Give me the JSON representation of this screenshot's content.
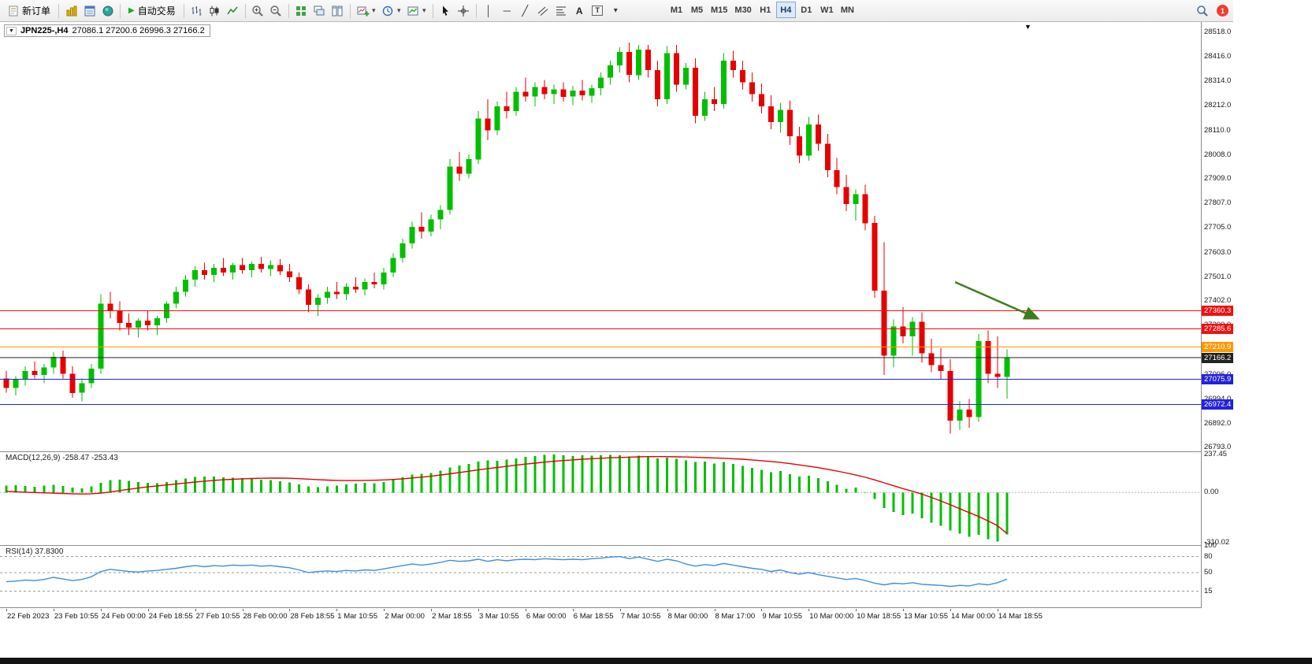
{
  "toolbar": {
    "new_order_label": "新订单",
    "auto_trading_label": "自动交易",
    "timeframes": [
      "M1",
      "M5",
      "M15",
      "M30",
      "H1",
      "H4",
      "D1",
      "W1",
      "MN"
    ],
    "active_timeframe": "H4",
    "notification_count": "1"
  },
  "icons": {
    "play": "▶",
    "caret": "▾",
    "vertical_line": "│",
    "horizontal_line": "─",
    "trendline": "╱",
    "text": "A",
    "label_text": "T",
    "collapse": "▼",
    "shift_marker": "▼"
  },
  "chart": {
    "symbol_label": "JPN225-,H4",
    "ohlc_label": "27086.1 27200.6 26996.3 27166.2"
  },
  "chart_data": [
    {
      "type": "candlestick",
      "symbol": "JPN225-",
      "timeframe": "H4",
      "current_bar": {
        "open": 27086.1,
        "high": 27200.6,
        "low": 26996.3,
        "close": 27166.2
      },
      "colors": {
        "up": "#00bf00",
        "down": "#e60000"
      },
      "y_range": [
        26777,
        28560
      ],
      "y_axis_labels": [
        28518,
        28416,
        28314,
        28212,
        28110,
        28008,
        27909,
        27807,
        27705,
        27603,
        27501,
        27402,
        27300,
        27198,
        27096,
        26994,
        26892,
        26793
      ],
      "x_label_step": 5,
      "x_labels": [
        "22 Feb 2023",
        "23 Feb 10:55",
        "24 Feb 00:00",
        "24 Feb 18:55",
        "27 Feb 10:55",
        "28 Feb 00:00",
        "28 Feb 18:55",
        "1 Mar 10:55",
        "2 Mar 00:00",
        "2 Mar 18:55",
        "3 Mar 10:55",
        "6 Mar 00:00",
        "6 Mar 18:55",
        "7 Mar 10:55",
        "8 Mar 00:00",
        "8 Mar 17:00",
        "9 Mar 10:55",
        "10 Mar 00:00",
        "10 Mar 18:55",
        "13 Mar 10:55",
        "14 Mar 00:00",
        "14 Mar 18:55"
      ],
      "levels": [
        {
          "price": 27360.3,
          "color": "#ee1111",
          "style": "solid"
        },
        {
          "price": 27285.6,
          "color": "#ee1111",
          "style": "solid"
        },
        {
          "price": 27210.9,
          "color": "#ff9800",
          "style": "solid"
        },
        {
          "price": 27166.2,
          "color": "#222222",
          "style": "solid",
          "kind": "bid"
        },
        {
          "price": 27075.9,
          "color": "#2222dd",
          "style": "solid"
        },
        {
          "price": 26972.4,
          "color": "#2222dd",
          "style": "solid"
        }
      ],
      "arrow": {
        "i1": 100.5,
        "p1": 27480,
        "i2": 109.2,
        "p2": 27330,
        "color": "#3f7d1c"
      },
      "candles": [
        [
          27080,
          27110,
          27020,
          27040
        ],
        [
          27040,
          27090,
          27010,
          27075
        ],
        [
          27075,
          27130,
          27050,
          27110
        ],
        [
          27110,
          27150,
          27080,
          27095
        ],
        [
          27095,
          27140,
          27060,
          27125
        ],
        [
          27125,
          27190,
          27100,
          27170
        ],
        [
          27170,
          27195,
          27080,
          27100
        ],
        [
          27100,
          27130,
          27000,
          27020
        ],
        [
          27020,
          27080,
          26985,
          27060
        ],
        [
          27060,
          27140,
          27040,
          27120
        ],
        [
          27120,
          27430,
          27100,
          27390
        ],
        [
          27390,
          27440,
          27330,
          27360
        ],
        [
          27360,
          27400,
          27280,
          27310
        ],
        [
          27310,
          27350,
          27260,
          27290
        ],
        [
          27290,
          27330,
          27250,
          27320
        ],
        [
          27320,
          27360,
          27280,
          27300
        ],
        [
          27300,
          27340,
          27260,
          27330
        ],
        [
          27330,
          27400,
          27310,
          27390
        ],
        [
          27390,
          27460,
          27370,
          27440
        ],
        [
          27440,
          27510,
          27420,
          27490
        ],
        [
          27490,
          27545,
          27460,
          27530
        ],
        [
          27530,
          27560,
          27490,
          27510
        ],
        [
          27510,
          27555,
          27480,
          27540
        ],
        [
          27540,
          27580,
          27505,
          27520
        ],
        [
          27520,
          27560,
          27490,
          27550
        ],
        [
          27550,
          27580,
          27515,
          27530
        ],
        [
          27530,
          27565,
          27500,
          27555
        ],
        [
          27555,
          27585,
          27520,
          27535
        ],
        [
          27535,
          27570,
          27505,
          27550
        ],
        [
          27550,
          27575,
          27510,
          27525
        ],
        [
          27525,
          27555,
          27480,
          27500
        ],
        [
          27500,
          27520,
          27430,
          27450
        ],
        [
          27450,
          27470,
          27355,
          27385
        ],
        [
          27385,
          27430,
          27340,
          27415
        ],
        [
          27415,
          27460,
          27390,
          27440
        ],
        [
          27440,
          27480,
          27410,
          27430
        ],
        [
          27430,
          27475,
          27405,
          27460
        ],
        [
          27460,
          27500,
          27435,
          27450
        ],
        [
          27450,
          27495,
          27425,
          27480
        ],
        [
          27480,
          27520,
          27455,
          27470
        ],
        [
          27470,
          27540,
          27450,
          27520
        ],
        [
          27520,
          27600,
          27500,
          27580
        ],
        [
          27580,
          27660,
          27560,
          27640
        ],
        [
          27640,
          27730,
          27620,
          27710
        ],
        [
          27710,
          27770,
          27660,
          27690
        ],
        [
          27690,
          27760,
          27670,
          27740
        ],
        [
          27740,
          27800,
          27700,
          27780
        ],
        [
          27780,
          27990,
          27760,
          27960
        ],
        [
          27960,
          28020,
          27900,
          27930
        ],
        [
          27930,
          28010,
          27910,
          27990
        ],
        [
          27990,
          28190,
          27970,
          28160
        ],
        [
          28160,
          28240,
          28070,
          28110
        ],
        [
          28110,
          28230,
          28090,
          28210
        ],
        [
          28210,
          28270,
          28160,
          28190
        ],
        [
          28190,
          28290,
          28170,
          28270
        ],
        [
          28270,
          28330,
          28230,
          28250
        ],
        [
          28250,
          28310,
          28210,
          28290
        ],
        [
          28290,
          28320,
          28240,
          28260
        ],
        [
          28260,
          28300,
          28220,
          28280
        ],
        [
          28280,
          28310,
          28230,
          28250
        ],
        [
          28250,
          28295,
          28215,
          28275
        ],
        [
          28275,
          28320,
          28235,
          28255
        ],
        [
          28255,
          28300,
          28225,
          28285
        ],
        [
          28285,
          28350,
          28255,
          28330
        ],
        [
          28330,
          28400,
          28300,
          28380
        ],
        [
          28380,
          28455,
          28350,
          28435
        ],
        [
          28435,
          28475,
          28310,
          28340
        ],
        [
          28340,
          28465,
          28320,
          28445
        ],
        [
          28445,
          28465,
          28330,
          28360
        ],
        [
          28360,
          28400,
          28210,
          28240
        ],
        [
          28240,
          28460,
          28220,
          28430
        ],
        [
          28430,
          28465,
          28270,
          28300
        ],
        [
          28300,
          28390,
          28280,
          28370
        ],
        [
          28370,
          28410,
          28140,
          28170
        ],
        [
          28170,
          28270,
          28150,
          28240
        ],
        [
          28240,
          28290,
          28190,
          28220
        ],
        [
          28220,
          28430,
          28200,
          28400
        ],
        [
          28400,
          28440,
          28330,
          28360
        ],
        [
          28360,
          28400,
          28280,
          28310
        ],
        [
          28310,
          28350,
          28230,
          28260
        ],
        [
          28260,
          28305,
          28180,
          28210
        ],
        [
          28210,
          28255,
          28115,
          28145
        ],
        [
          28145,
          28225,
          28100,
          28195
        ],
        [
          28195,
          28235,
          28050,
          28085
        ],
        [
          28085,
          28125,
          27975,
          28005
        ],
        [
          28005,
          28165,
          27985,
          28135
        ],
        [
          28135,
          28175,
          28025,
          28055
        ],
        [
          28055,
          28095,
          27915,
          27945
        ],
        [
          27945,
          27995,
          27845,
          27875
        ],
        [
          27875,
          27925,
          27775,
          27805
        ],
        [
          27805,
          27865,
          27735,
          27845
        ],
        [
          27845,
          27885,
          27695,
          27725
        ],
        [
          27725,
          27755,
          27415,
          27445
        ],
        [
          27445,
          27645,
          27095,
          27175
        ],
        [
          27175,
          27325,
          27125,
          27295
        ],
        [
          27295,
          27375,
          27225,
          27255
        ],
        [
          27255,
          27335,
          27175,
          27315
        ],
        [
          27315,
          27355,
          27145,
          27185
        ],
        [
          27185,
          27245,
          27105,
          27135
        ],
        [
          27135,
          27205,
          27075,
          27110
        ],
        [
          27110,
          27160,
          26850,
          26905
        ],
        [
          26905,
          26985,
          26865,
          26950
        ],
        [
          26950,
          26995,
          26875,
          26920
        ],
        [
          26920,
          27265,
          26900,
          27235
        ],
        [
          27235,
          27280,
          27060,
          27100
        ],
        [
          27100,
          27255,
          27040,
          27086
        ],
        [
          27086,
          27200.6,
          26996.3,
          27166.2
        ]
      ]
    },
    {
      "type": "macd",
      "label": "MACD(12,26,9) -258.47 -253.43",
      "main_value": -258.47,
      "signal_value": -253.43,
      "colors": {
        "histogram": "#00c000",
        "signal": "#e60000"
      },
      "y_range": [
        -325,
        250
      ],
      "y_axis_labels": [
        237.45,
        0,
        -310.02
      ],
      "histogram": [
        42,
        45,
        40,
        36,
        42,
        48,
        40,
        30,
        26,
        38,
        60,
        78,
        80,
        72,
        66,
        60,
        58,
        66,
        76,
        86,
        96,
        100,
        98,
        95,
        92,
        88,
        84,
        80,
        76,
        70,
        62,
        50,
        38,
        34,
        38,
        44,
        50,
        55,
        60,
        58,
        66,
        80,
        95,
        110,
        115,
        122,
        135,
        155,
        168,
        178,
        192,
        200,
        196,
        204,
        212,
        220,
        226,
        232,
        235,
        230,
        226,
        230,
        227,
        230,
        233,
        230,
        224,
        228,
        220,
        210,
        216,
        208,
        200,
        188,
        192,
        180,
        188,
        176,
        164,
        152,
        140,
        126,
        132,
        114,
        98,
        104,
        88,
        70,
        48,
        24,
        30,
        2,
        -40,
        -95,
        -120,
        -140,
        -130,
        -160,
        -185,
        -205,
        -235,
        -255,
        -275,
        -262,
        -288,
        -302,
        -258.5
      ],
      "signal": [
        8,
        5,
        2,
        0,
        -2,
        -4,
        -6,
        -8,
        -9,
        -8,
        -4,
        3,
        12,
        20,
        28,
        35,
        41,
        47,
        53,
        59,
        65,
        70,
        75,
        79,
        82,
        85,
        87,
        88,
        89,
        89,
        88,
        86,
        83,
        80,
        77,
        75,
        74,
        74,
        75,
        76,
        78,
        81,
        85,
        90,
        95,
        101,
        108,
        116,
        124,
        132,
        140,
        148,
        155,
        162,
        169,
        176,
        182,
        188,
        193,
        198,
        202,
        206,
        209,
        212,
        215,
        217,
        219,
        221,
        222,
        222,
        222,
        221,
        220,
        218,
        216,
        214,
        212,
        209,
        206,
        202,
        197,
        192,
        186,
        179,
        171,
        163,
        154,
        144,
        133,
        121,
        108,
        94,
        78,
        60,
        42,
        24,
        8,
        -10,
        -30,
        -52,
        -76,
        -100,
        -124,
        -148,
        -176,
        -205,
        -253.4
      ]
    },
    {
      "type": "rsi",
      "label": "RSI(14) 37.8300",
      "value": 37.83,
      "color": "#3e8ede",
      "levels": [
        80,
        50,
        15
      ],
      "y_range": [
        -15,
        100
      ],
      "y_axis_labels": [
        100,
        80,
        50,
        15
      ],
      "values": [
        33,
        34,
        36,
        35,
        37,
        41,
        38,
        35,
        37,
        42,
        52,
        56,
        54,
        52,
        51,
        53,
        54,
        56,
        58,
        61,
        63,
        61,
        63,
        62,
        64,
        63,
        64,
        62,
        63,
        61,
        59,
        55,
        50,
        52,
        53,
        52,
        54,
        53,
        55,
        54,
        57,
        60,
        63,
        66,
        64,
        66,
        69,
        73,
        71,
        72,
        75,
        71,
        74,
        72,
        74,
        75,
        74,
        76,
        75,
        74,
        75,
        74,
        76,
        77,
        79,
        80,
        76,
        79,
        75,
        71,
        75,
        72,
        66,
        62,
        65,
        63,
        67,
        64,
        61,
        58,
        56,
        52,
        55,
        50,
        47,
        50,
        46,
        43,
        40,
        37,
        39,
        35,
        30,
        27,
        30,
        29,
        31,
        28,
        27,
        26,
        24,
        26,
        25,
        29,
        27,
        31,
        37.8
      ]
    }
  ]
}
